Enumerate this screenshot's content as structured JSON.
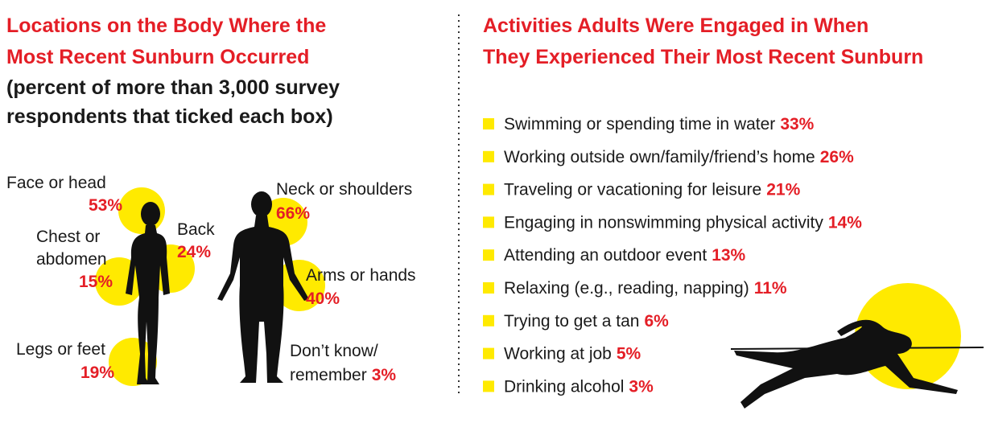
{
  "left": {
    "title": [
      "Locations on the Body Where the",
      "Most Recent Sunburn Occurred"
    ],
    "subtitle": [
      "(percent of more than 3,000 survey",
      "respondents that ticked each box)"
    ],
    "locations": [
      {
        "label": [
          "Face or head"
        ],
        "value": "53%"
      },
      {
        "label": [
          "Chest or",
          "abdomen"
        ],
        "value": "15%"
      },
      {
        "label": [
          "Back"
        ],
        "value": "24%"
      },
      {
        "label": [
          "Legs or feet"
        ],
        "value": "19%"
      },
      {
        "label": [
          "Neck or shoulders"
        ],
        "value": "66%"
      },
      {
        "label": [
          "Arms or hands"
        ],
        "value": "40%"
      },
      {
        "label": [
          "Don’t know/",
          "remember"
        ],
        "value": "3%"
      }
    ]
  },
  "right": {
    "title": [
      "Activities Adults Were Engaged in When",
      "They Experienced Their Most Recent Sunburn"
    ],
    "activities": [
      {
        "label": "Swimming or spending time in water",
        "value": "33%"
      },
      {
        "label": "Working outside own/family/friend’s home",
        "value": "26%"
      },
      {
        "label": "Traveling or vacationing for leisure",
        "value": "21%"
      },
      {
        "label": "Engaging in nonswimming physical activity",
        "value": "14%"
      },
      {
        "label": "Attending an outdoor event",
        "value": "13%"
      },
      {
        "label": "Relaxing (e.g., reading, napping)",
        "value": "11%"
      },
      {
        "label": "Trying to get a tan",
        "value": "6%"
      },
      {
        "label": "Working at job",
        "value": "5%"
      },
      {
        "label": "Drinking alcohol",
        "value": "3%"
      }
    ]
  }
}
